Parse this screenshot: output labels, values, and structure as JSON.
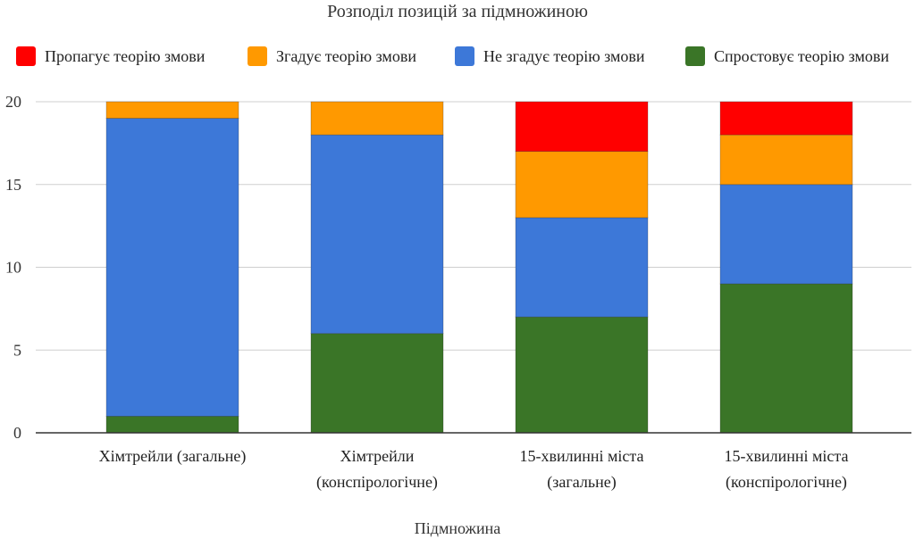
{
  "chart_data": {
    "type": "bar",
    "stacked": true,
    "title": "Розподіл позицій за підмножиною",
    "xlabel": "Підмножина",
    "ylabel": "",
    "ylim": [
      0,
      20
    ],
    "yticks": [
      0,
      5,
      10,
      15,
      20
    ],
    "grid": true,
    "legend_position": "top",
    "categories": [
      [
        "Хімтрейли (загальне)"
      ],
      [
        "Хімтрейли",
        "(конспірологічне)"
      ],
      [
        "15-хвилинні міста",
        "(загальне)"
      ],
      [
        "15-хвилинні міста",
        "(конспірологічне)"
      ]
    ],
    "series": [
      {
        "name": "Спростовує теорію змови",
        "color": "#3a7527",
        "values": [
          1,
          6,
          7,
          9
        ]
      },
      {
        "name": "Не згадує теорію змови",
        "color": "#3d78d8",
        "values": [
          18,
          12,
          6,
          6
        ]
      },
      {
        "name": "Згадує теорію змови",
        "color": "#ff9900",
        "values": [
          1,
          2,
          4,
          3
        ]
      },
      {
        "name": "Пропагує теорію змови",
        "color": "#ff0000",
        "values": [
          0,
          0,
          3,
          2
        ]
      }
    ],
    "legend_order": [
      3,
      2,
      1,
      0
    ]
  }
}
